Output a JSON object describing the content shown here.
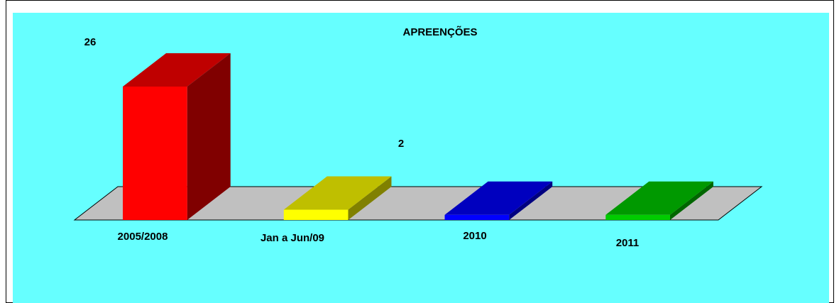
{
  "chart_data": {
    "type": "bar3d",
    "title": "APREENÇÕES",
    "categories": [
      "2005/2008",
      "Jan a Jun/09",
      "2010",
      "2011"
    ],
    "values": [
      26,
      2,
      1,
      1
    ],
    "value_labels": [
      "26",
      "2",
      null,
      null
    ],
    "colors": [
      "#ff0000",
      "#ffff00",
      "#0000ff",
      "#00cc00"
    ],
    "ylim": [
      0,
      26
    ]
  }
}
